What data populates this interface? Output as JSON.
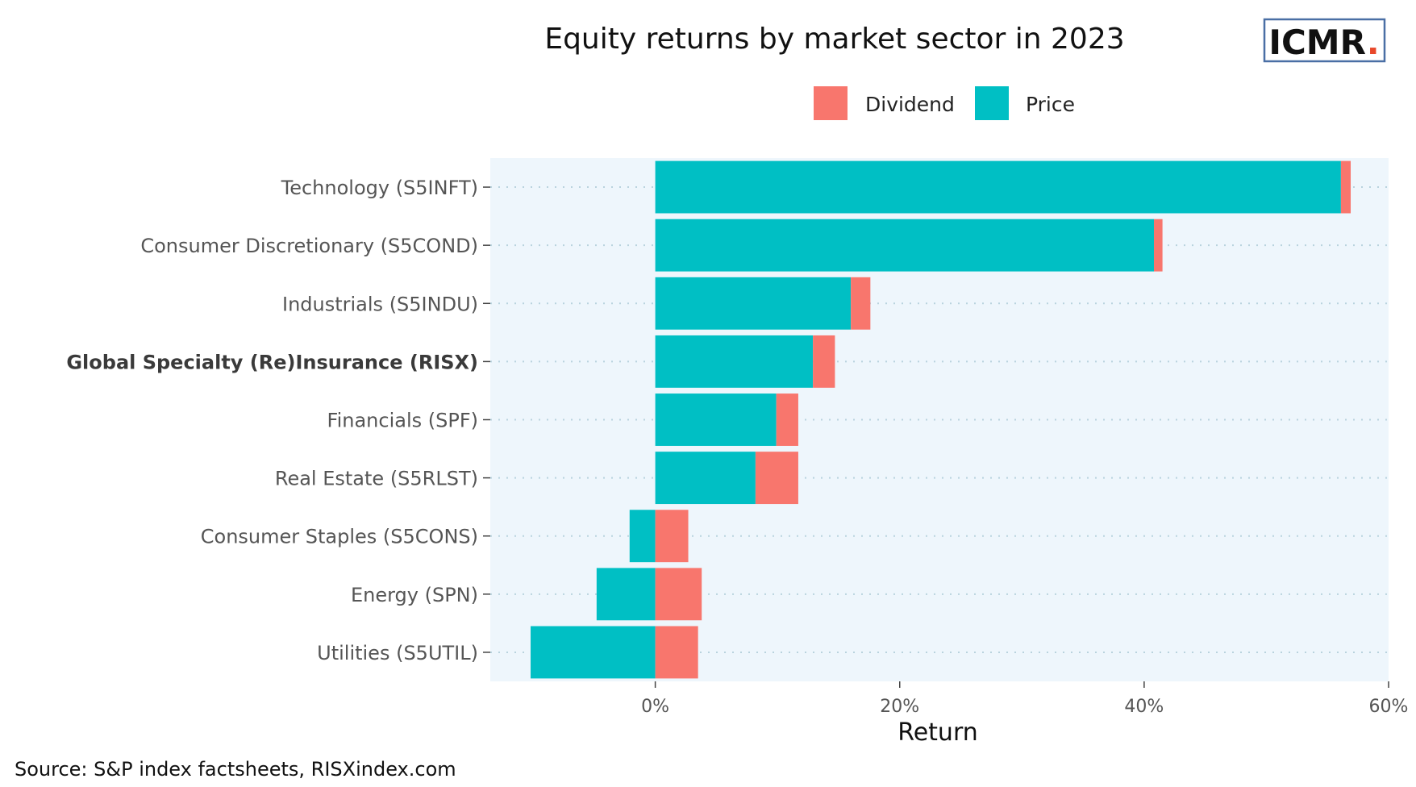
{
  "title": "Equity returns by market sector in 2023",
  "logo": {
    "text": "ICMR",
    "dot": ".",
    "border_color": "#4a6fa5",
    "dot_color": "#e8482a"
  },
  "legend": {
    "position": "top-right",
    "items": [
      {
        "label": "Dividend",
        "color": "#f8766d"
      },
      {
        "label": "Price",
        "color": "#00bfc4"
      }
    ]
  },
  "source": "Source: S&P index factsheets, RISXindex.com",
  "chart_data": {
    "type": "bar",
    "orientation": "horizontal",
    "stacked": true,
    "title": "Equity returns by market sector in 2023",
    "xlabel": "Return",
    "ylabel": "",
    "xlim": [
      -13.5,
      60
    ],
    "x_ticks": [
      0,
      20,
      40,
      60
    ],
    "x_tick_labels": [
      "0%",
      "20%",
      "40%",
      "60%"
    ],
    "grid": "dotted horizontal",
    "panel_background": "#eef6fc",
    "categories": [
      "Technology (S5INFT)",
      "Consumer Discretionary (S5COND)",
      "Industrials (S5INDU)",
      "Global Specialty (Re)Insurance (RISX)",
      "Financials (SPF)",
      "Real Estate (S5RLST)",
      "Consumer Staples (S5CONS)",
      "Energy (SPN)",
      "Utilities (S5UTIL)"
    ],
    "highlighted_category": "Global Specialty (Re)Insurance (RISX)",
    "series": [
      {
        "name": "Price",
        "color": "#00bfc4",
        "values": [
          56.1,
          40.8,
          16.0,
          12.9,
          9.9,
          8.2,
          -2.1,
          -4.8,
          -10.2
        ]
      },
      {
        "name": "Dividend",
        "color": "#f8766d",
        "values": [
          0.8,
          0.7,
          1.6,
          1.8,
          1.8,
          3.5,
          2.7,
          3.8,
          3.5
        ]
      }
    ]
  }
}
